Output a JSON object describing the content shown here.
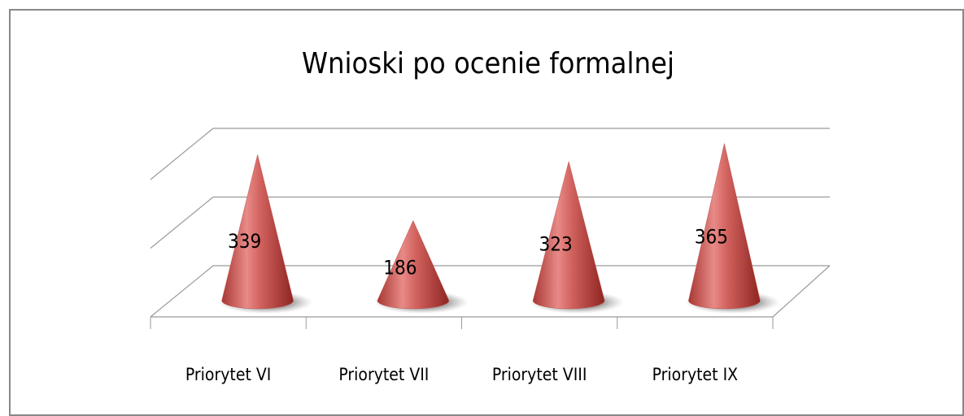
{
  "chart_data": {
    "type": "cone",
    "title": "Wnioski po ocenie formalnej",
    "categories": [
      "Priorytet VI",
      "Priorytet VII",
      "Priorytet VIII",
      "Priorytet IX"
    ],
    "values": [
      339,
      186,
      323,
      365
    ],
    "color": "#c0504d",
    "ylim": [
      0,
      400
    ],
    "yticks": [
      0,
      200,
      400
    ],
    "grid": true
  }
}
